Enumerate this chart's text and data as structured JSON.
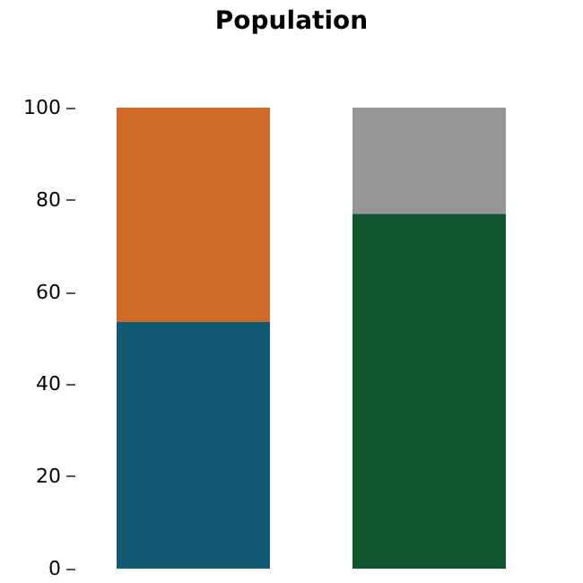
{
  "chart_data": {
    "type": "bar",
    "title": "Population",
    "categories": [
      null,
      null
    ],
    "stacked": true,
    "series": [
      {
        "colors": [
          "#115a73",
          "#0f552e"
        ],
        "values": [
          53.5,
          77
        ]
      },
      {
        "colors": [
          "#cf6a28",
          "#969696"
        ],
        "values": [
          46.5,
          23
        ]
      }
    ],
    "ylim": [
      0,
      100
    ],
    "yticks": [
      0,
      20,
      40,
      60,
      80,
      100
    ],
    "grid": false
  }
}
